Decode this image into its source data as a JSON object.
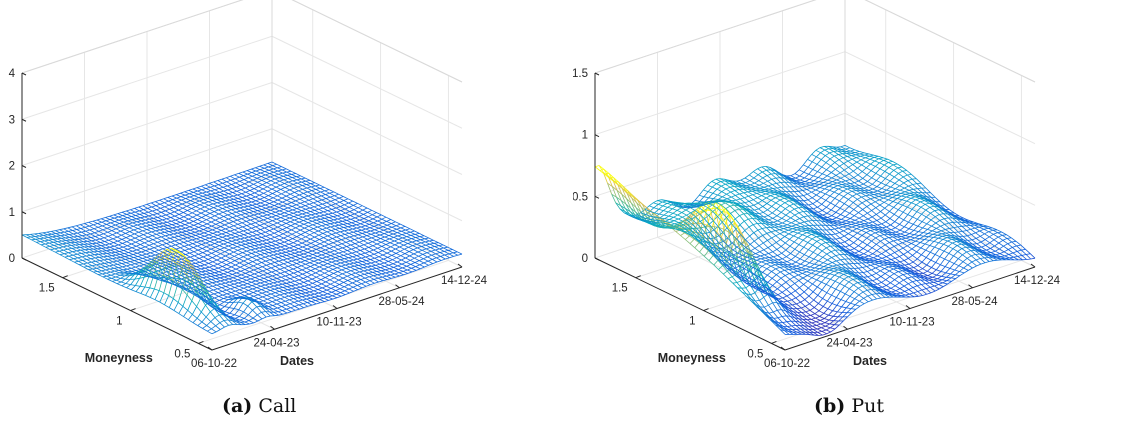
{
  "chart_data": [
    {
      "type": "surface",
      "caption_label": "(a)",
      "caption_title": "Call",
      "xlabel": "Dates",
      "ylabel": "Moneyness",
      "zlabel": "",
      "x_ticks": [
        "06-10-22",
        "24-04-23",
        "10-11-23",
        "28-05-24",
        "14-12-24"
      ],
      "y_ticks": [
        "0.5",
        "1",
        "1.5"
      ],
      "z_ticks": [
        "0",
        "1",
        "2",
        "3",
        "4"
      ],
      "xlim": [
        "06-10-22",
        "14-12-24"
      ],
      "ylim": [
        0.4,
        1.8
      ],
      "zlim": [
        0,
        4
      ],
      "grid": true,
      "colormap": "parula-like (blue low, yellow high)",
      "surface": {
        "baseline": "approximately 0.2-0.6, rising toward low moneyness",
        "peak": {
          "date": "06-10-22",
          "moneyness": 0.55,
          "value": 1.35
        },
        "secondary_bump": {
          "date": "24-04-23",
          "moneyness": 0.45,
          "value": 0.55
        },
        "left_edge_value": 0.6
      }
    },
    {
      "type": "surface",
      "caption_label": "(b)",
      "caption_title": "Put",
      "xlabel": "Dates",
      "ylabel": "Moneyness",
      "zlabel": "",
      "x_ticks": [
        "06-10-22",
        "24-04-23",
        "10-11-23",
        "28-05-24",
        "14-12-24"
      ],
      "y_ticks": [
        "0.5",
        "1",
        "1.5"
      ],
      "z_ticks": [
        "0",
        "0.5",
        "1",
        "1.5"
      ],
      "xlim": [
        "06-10-22",
        "14-12-24"
      ],
      "ylim": [
        0.4,
        1.8
      ],
      "zlim": [
        0,
        1.5
      ],
      "grid": true,
      "colormap": "parula-like (blue low, yellow high)",
      "surface": {
        "baseline": "approximately 0.1-0.4",
        "peak": {
          "date": "06-10-22",
          "moneyness": 0.55,
          "value": 0.6
        },
        "left_edge_value": 0.65
      }
    }
  ]
}
